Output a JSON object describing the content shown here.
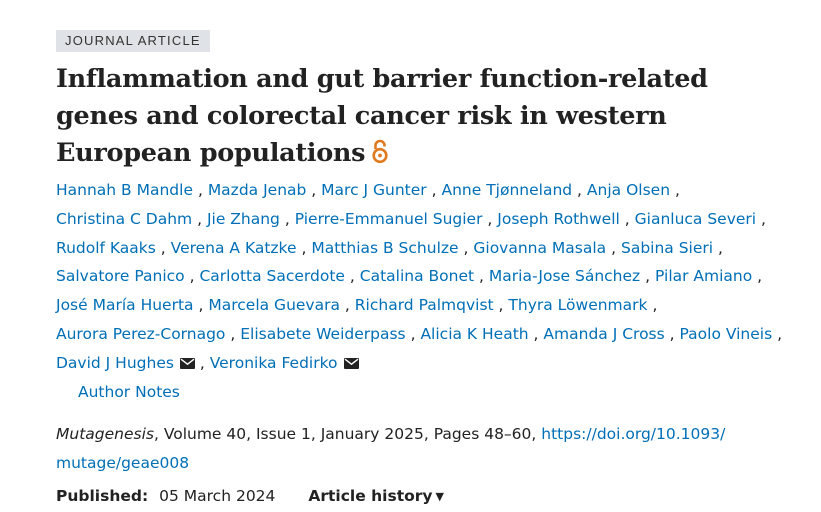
{
  "badge": "JOURNAL ARTICLE",
  "title": "Inflammation and gut barrier function-related genes and colorectal cancer risk in western European populations",
  "icons": {
    "open_access": "open-access-lock-icon",
    "email": "envelope-icon",
    "caret": "triangle-down-icon"
  },
  "colors": {
    "link": "#006fb7",
    "open_access": "#e07a1f",
    "badge_bg": "#dfe2e6",
    "text": "#222222"
  },
  "authors": [
    {
      "name": "Hannah B Mandle"
    },
    {
      "name": "Mazda Jenab"
    },
    {
      "name": "Marc J Gunter"
    },
    {
      "name": "Anne Tjønneland"
    },
    {
      "name": "Anja Olsen"
    },
    {
      "name": "Christina C Dahm"
    },
    {
      "name": "Jie Zhang"
    },
    {
      "name": "Pierre-Emmanuel Sugier"
    },
    {
      "name": "Joseph Rothwell"
    },
    {
      "name": "Gianluca Severi"
    },
    {
      "name": "Rudolf Kaaks"
    },
    {
      "name": "Verena A Katzke"
    },
    {
      "name": "Matthias B Schulze"
    },
    {
      "name": "Giovanna Masala"
    },
    {
      "name": "Sabina Sieri"
    },
    {
      "name": "Salvatore Panico"
    },
    {
      "name": "Carlotta Sacerdote"
    },
    {
      "name": "Catalina Bonet"
    },
    {
      "name": "Maria-Jose Sánchez"
    },
    {
      "name": "Pilar Amiano"
    },
    {
      "name": "José María Huerta"
    },
    {
      "name": "Marcela Guevara"
    },
    {
      "name": "Richard Palmqvist"
    },
    {
      "name": "Thyra Löwenmark"
    },
    {
      "name": "Aurora Perez-Cornago"
    },
    {
      "name": "Elisabete Weiderpass"
    },
    {
      "name": "Alicia K Heath"
    },
    {
      "name": "Amanda J Cross"
    },
    {
      "name": "Paolo Vineis"
    },
    {
      "name": "David J Hughes"
    },
    {
      "name": "Veronika Fedirko"
    }
  ],
  "separator": ",",
  "author_notes": "Author Notes",
  "citation": {
    "journal": "Mutagenesis",
    "details": ", Volume 40, Issue 1, January 2025, Pages 48–60, ",
    "doi_line1": "https://doi.org/10.1093/",
    "doi_line2": "mutage/geae008"
  },
  "published": {
    "label": "Published:",
    "date": "05 March 2024"
  },
  "article_history": "Article history"
}
